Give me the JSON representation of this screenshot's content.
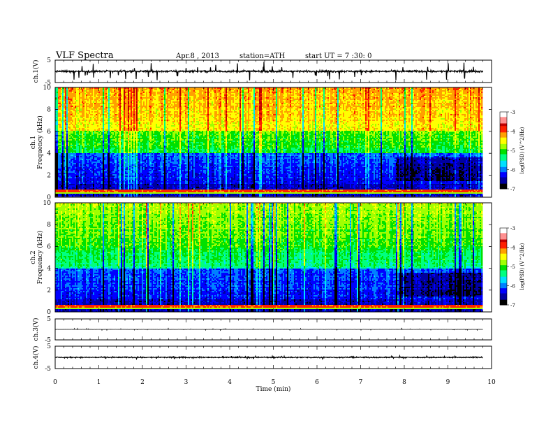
{
  "header": {
    "title": "VLF Spectra",
    "date": "Apr.8 , 2013",
    "station": "station=ATH",
    "start": "start UT = 7 :30: 0"
  },
  "chart_data": {
    "type": "heatmap",
    "x_axis": {
      "label": "Time (min)",
      "range": [
        0,
        10
      ],
      "ticks": [
        "0",
        "1",
        "2",
        "3",
        "4",
        "5",
        "6",
        "7",
        "8",
        "9",
        "10"
      ],
      "data_end_min": 9.8
    },
    "panels": [
      {
        "name": "ch.1 waveform",
        "type": "line",
        "ylabel": "ch.1(V)",
        "yticks": [
          "5",
          "-5"
        ],
        "ylim": [
          -5,
          5
        ],
        "baseline": 0.0,
        "noise_amplitude": 0.6,
        "spike_amplitude": 2.8
      },
      {
        "name": "ch.1 spectrogram",
        "type": "heatmap",
        "ylabel_lines": [
          "ch.1",
          "Frequency (kHz)"
        ],
        "yticks": [
          "0",
          "2",
          "4",
          "6",
          "8",
          "10"
        ],
        "ylim": [
          0,
          10
        ],
        "colorbar": {
          "label": "log(PSD) (V^2/Hz)",
          "ticks": [
            "-3",
            "-4",
            "-5",
            "-6",
            "-7"
          ],
          "range": [
            -7,
            -3
          ]
        },
        "description_levels": {
          "upper_band_kHz": [
            6,
            10
          ],
          "upper_band_level": -4.0,
          "mid_band_level": -5.0,
          "low_band_level": -6.2,
          "line_frequency_kHz": 0.5
        }
      },
      {
        "name": "ch.2 spectrogram",
        "type": "heatmap",
        "ylabel_lines": [
          "ch.2",
          "Frequency (kHz)"
        ],
        "yticks": [
          "0",
          "2",
          "4",
          "6",
          "8",
          "10"
        ],
        "ylim": [
          0,
          10
        ],
        "colorbar": {
          "label": "log(PSD) (V^2/Hz)",
          "ticks": [
            "-3",
            "-4",
            "-5",
            "-6",
            "-7"
          ],
          "range": [
            -7,
            -3
          ]
        },
        "description_levels": {
          "upper_band_kHz": [
            6,
            10
          ],
          "upper_band_level": -4.6,
          "mid_band_level": -5.2,
          "low_band_level": -6.2,
          "line_frequency_kHz": 0.5
        }
      },
      {
        "name": "ch.3 waveform",
        "type": "line",
        "ylabel": "ch.3(V)",
        "yticks": [
          "5",
          "-5"
        ],
        "ylim": [
          -5,
          5
        ],
        "baseline": 0.0,
        "noise_amplitude": 0.05,
        "spike_amplitude": 0.3
      },
      {
        "name": "ch.4 waveform",
        "type": "line",
        "ylabel": "ch.4(V)",
        "yticks": [
          "5",
          "-5"
        ],
        "ylim": [
          -5,
          5
        ],
        "baseline": 0.0,
        "noise_amplitude": 0.35,
        "spike_amplitude": 0.4
      }
    ],
    "colormap": [
      "#000000",
      "#0000a0",
      "#0000ff",
      "#0080ff",
      "#00e0ff",
      "#00ff80",
      "#00e000",
      "#a0ff00",
      "#ffff00",
      "#ffa000",
      "#ff2000",
      "#c00000",
      "#ff9090",
      "#ffffff"
    ]
  }
}
